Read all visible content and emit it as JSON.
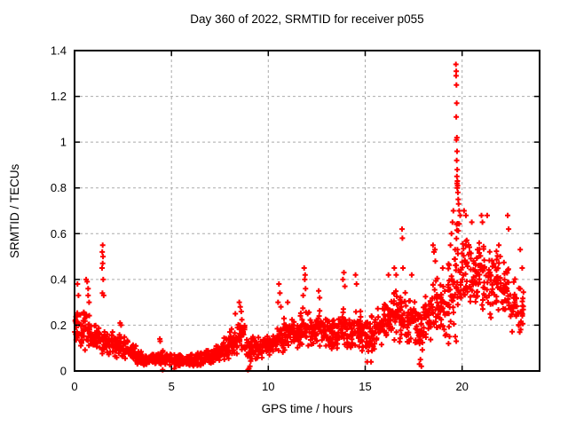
{
  "chart_data": {
    "type": "scatter",
    "title": "Day 360 of 2022, SRMTID for receiver p055",
    "xlabel": "GPS time / hours",
    "ylabel": "SRMTID / TECUs",
    "xlim": [
      0,
      24
    ],
    "ylim": [
      0,
      1.4
    ],
    "xticks": [
      0,
      5,
      10,
      15,
      20
    ],
    "yticks": [
      0,
      0.2,
      0.4,
      0.6,
      0.8,
      1,
      1.2,
      1.4
    ],
    "grid": true,
    "legend_position": "none",
    "marker": {
      "glyph": "+",
      "color": "#ff0000",
      "size": 7,
      "stroke_width": 2
    },
    "colors": {
      "grid": "#ababab",
      "border": "#000000",
      "text": "#000000",
      "background": "#ffffff"
    },
    "data_time_span_hours": [
      0,
      23.2
    ],
    "bin_format": [
      "t_start",
      "t_end",
      "count",
      "y_center",
      "y_halfspread"
    ],
    "density_bins": [
      [
        0.0,
        0.4,
        30,
        0.18,
        0.08
      ],
      [
        0.4,
        0.8,
        30,
        0.19,
        0.09
      ],
      [
        0.8,
        1.2,
        30,
        0.15,
        0.06
      ],
      [
        1.2,
        1.6,
        30,
        0.14,
        0.06
      ],
      [
        1.6,
        2.0,
        30,
        0.12,
        0.05
      ],
      [
        2.0,
        2.4,
        30,
        0.11,
        0.05
      ],
      [
        2.4,
        2.8,
        30,
        0.1,
        0.05
      ],
      [
        2.8,
        3.2,
        30,
        0.08,
        0.04
      ],
      [
        3.2,
        3.6,
        30,
        0.06,
        0.03
      ],
      [
        3.6,
        4.0,
        30,
        0.05,
        0.025
      ],
      [
        4.0,
        4.4,
        30,
        0.05,
        0.025
      ],
      [
        4.4,
        4.8,
        30,
        0.055,
        0.03
      ],
      [
        4.8,
        5.2,
        30,
        0.05,
        0.025
      ],
      [
        5.2,
        5.6,
        30,
        0.05,
        0.025
      ],
      [
        5.6,
        6.0,
        30,
        0.045,
        0.025
      ],
      [
        6.0,
        6.4,
        30,
        0.05,
        0.03
      ],
      [
        6.4,
        6.8,
        30,
        0.055,
        0.03
      ],
      [
        6.8,
        7.2,
        30,
        0.06,
        0.035
      ],
      [
        7.2,
        7.6,
        30,
        0.08,
        0.04
      ],
      [
        7.6,
        8.0,
        30,
        0.1,
        0.05
      ],
      [
        8.0,
        8.4,
        30,
        0.13,
        0.06
      ],
      [
        8.4,
        8.8,
        30,
        0.17,
        0.08
      ],
      [
        8.8,
        9.2,
        30,
        0.1,
        0.06
      ],
      [
        9.2,
        9.6,
        30,
        0.1,
        0.05
      ],
      [
        9.6,
        10.0,
        30,
        0.11,
        0.05
      ],
      [
        10.0,
        10.4,
        30,
        0.12,
        0.05
      ],
      [
        10.4,
        10.8,
        30,
        0.14,
        0.06
      ],
      [
        10.8,
        11.2,
        30,
        0.16,
        0.07
      ],
      [
        11.2,
        11.6,
        30,
        0.17,
        0.07
      ],
      [
        11.6,
        12.0,
        30,
        0.19,
        0.08
      ],
      [
        12.0,
        12.4,
        30,
        0.18,
        0.07
      ],
      [
        12.4,
        12.8,
        30,
        0.19,
        0.08
      ],
      [
        12.8,
        13.2,
        30,
        0.17,
        0.07
      ],
      [
        13.2,
        13.6,
        30,
        0.16,
        0.07
      ],
      [
        13.6,
        14.0,
        30,
        0.19,
        0.09
      ],
      [
        14.0,
        14.4,
        30,
        0.17,
        0.07
      ],
      [
        14.4,
        14.8,
        30,
        0.18,
        0.08
      ],
      [
        14.8,
        15.2,
        30,
        0.15,
        0.07
      ],
      [
        15.2,
        15.6,
        30,
        0.16,
        0.08
      ],
      [
        15.6,
        16.0,
        30,
        0.19,
        0.08
      ],
      [
        16.0,
        16.4,
        30,
        0.22,
        0.1
      ],
      [
        16.4,
        16.8,
        30,
        0.25,
        0.11
      ],
      [
        16.8,
        17.2,
        30,
        0.24,
        0.11
      ],
      [
        17.2,
        17.6,
        30,
        0.23,
        0.1
      ],
      [
        17.6,
        18.0,
        30,
        0.16,
        0.1
      ],
      [
        18.0,
        18.4,
        30,
        0.24,
        0.11
      ],
      [
        18.4,
        18.8,
        30,
        0.3,
        0.13
      ],
      [
        18.8,
        19.2,
        30,
        0.28,
        0.12
      ],
      [
        19.2,
        19.6,
        30,
        0.34,
        0.16
      ],
      [
        19.6,
        20.0,
        34,
        0.46,
        0.18
      ],
      [
        20.0,
        20.4,
        30,
        0.45,
        0.16
      ],
      [
        20.4,
        20.8,
        30,
        0.42,
        0.15
      ],
      [
        20.8,
        21.2,
        30,
        0.43,
        0.15
      ],
      [
        21.2,
        21.6,
        30,
        0.38,
        0.14
      ],
      [
        21.6,
        22.0,
        30,
        0.4,
        0.14
      ],
      [
        22.0,
        22.4,
        30,
        0.34,
        0.13
      ],
      [
        22.4,
        22.8,
        26,
        0.3,
        0.12
      ],
      [
        22.8,
        23.2,
        24,
        0.27,
        0.11
      ]
    ],
    "notable_points": [
      [
        0.15,
        0.38
      ],
      [
        0.2,
        0.33
      ],
      [
        0.6,
        0.4
      ],
      [
        0.65,
        0.39
      ],
      [
        0.7,
        0.36
      ],
      [
        0.7,
        0.33
      ],
      [
        0.75,
        0.3
      ],
      [
        1.45,
        0.55
      ],
      [
        1.43,
        0.52
      ],
      [
        1.47,
        0.5
      ],
      [
        1.45,
        0.47
      ],
      [
        1.42,
        0.45
      ],
      [
        1.48,
        0.4
      ],
      [
        1.44,
        0.34
      ],
      [
        1.5,
        0.33
      ],
      [
        2.35,
        0.21
      ],
      [
        2.4,
        0.2
      ],
      [
        4.4,
        0.14
      ],
      [
        4.42,
        0.13
      ],
      [
        4.55,
        0.005
      ],
      [
        5.15,
        0.01
      ],
      [
        8.3,
        0.25
      ],
      [
        8.5,
        0.3
      ],
      [
        8.55,
        0.28
      ],
      [
        8.6,
        0.26
      ],
      [
        8.95,
        0.005
      ],
      [
        9.0,
        0.01
      ],
      [
        9.05,
        0.02
      ],
      [
        10.5,
        0.3
      ],
      [
        10.55,
        0.38
      ],
      [
        10.6,
        0.34
      ],
      [
        10.65,
        0.28
      ],
      [
        11.0,
        0.3
      ],
      [
        11.8,
        0.33
      ],
      [
        11.85,
        0.45
      ],
      [
        11.88,
        0.4
      ],
      [
        11.9,
        0.42
      ],
      [
        11.92,
        0.36
      ],
      [
        12.6,
        0.35
      ],
      [
        12.65,
        0.32
      ],
      [
        13.85,
        0.4
      ],
      [
        13.9,
        0.43
      ],
      [
        13.95,
        0.37
      ],
      [
        14.5,
        0.42
      ],
      [
        14.55,
        0.38
      ],
      [
        15.1,
        0.04
      ],
      [
        15.3,
        0.04
      ],
      [
        16.2,
        0.42
      ],
      [
        16.5,
        0.45
      ],
      [
        16.6,
        0.42
      ],
      [
        16.9,
        0.62
      ],
      [
        16.92,
        0.58
      ],
      [
        16.95,
        0.45
      ],
      [
        17.4,
        0.42
      ],
      [
        17.8,
        0.03
      ],
      [
        17.85,
        0.05
      ],
      [
        17.9,
        0.02
      ],
      [
        18.5,
        0.55
      ],
      [
        18.55,
        0.52
      ],
      [
        18.6,
        0.53
      ],
      [
        18.62,
        0.48
      ],
      [
        19.0,
        0.45
      ],
      [
        19.3,
        0.12
      ],
      [
        19.35,
        0.15
      ],
      [
        19.65,
        0.15
      ],
      [
        19.7,
        0.13
      ],
      [
        19.4,
        0.55
      ],
      [
        19.45,
        0.6
      ],
      [
        19.5,
        0.65
      ],
      [
        19.55,
        0.7
      ],
      [
        19.68,
        1.34
      ],
      [
        19.7,
        1.31
      ],
      [
        19.69,
        1.29
      ],
      [
        19.71,
        1.25
      ],
      [
        19.72,
        1.17
      ],
      [
        19.7,
        1.11
      ],
      [
        19.73,
        1.02
      ],
      [
        19.71,
        1.01
      ],
      [
        19.74,
        0.96
      ],
      [
        19.72,
        0.92
      ],
      [
        19.75,
        0.88
      ],
      [
        19.73,
        0.85
      ],
      [
        19.76,
        0.83
      ],
      [
        19.74,
        0.82
      ],
      [
        19.77,
        0.81
      ],
      [
        19.75,
        0.8
      ],
      [
        19.78,
        0.78
      ],
      [
        19.8,
        0.75
      ],
      [
        19.82,
        0.73
      ],
      [
        19.85,
        0.7
      ],
      [
        19.9,
        0.68
      ],
      [
        20.1,
        0.7
      ],
      [
        20.2,
        0.68
      ],
      [
        20.5,
        0.65
      ],
      [
        21.0,
        0.68
      ],
      [
        21.05,
        0.65
      ],
      [
        21.3,
        0.68
      ],
      [
        21.9,
        0.55
      ],
      [
        22.35,
        0.68
      ],
      [
        22.4,
        0.62
      ],
      [
        23.0,
        0.53
      ],
      [
        23.1,
        0.45
      ]
    ]
  }
}
